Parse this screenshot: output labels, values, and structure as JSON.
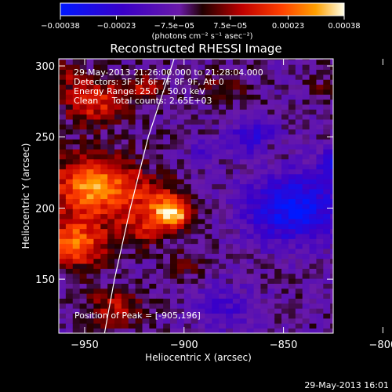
{
  "chart_data": {
    "type": "heatmap",
    "title": "Reconstructed RHESSI Image",
    "xlabel": "Heliocentric X (arcsec)",
    "ylabel": "Heliocentric Y (arcsec)",
    "xlim": [
      -963,
      -825
    ],
    "ylim": [
      112,
      305
    ],
    "xticks": [
      -950,
      -900,
      -850,
      -800
    ],
    "yticks": [
      150,
      200,
      250,
      300
    ],
    "colorbar": {
      "min": -0.00038,
      "max": 0.00038,
      "ticks": [
        -0.00038,
        -0.00023,
        -7.5e-05,
        7.5e-05,
        0.00023,
        0.00038
      ],
      "tick_labels": [
        "−0.00038",
        "−0.00023",
        "−7.5e−05",
        "7.5e−05",
        "0.00023",
        "0.00038"
      ],
      "unit_label": "(photons cm⁻² s⁻¹ asec⁻²)"
    },
    "annotations": [
      "29-May-2013 21:26:00.000 to 21:28:04.000",
      "Detectors: 3F 5F 6F 7F 8F 9F, Att 0",
      "Energy Range: 25.0 - 50.0 keV",
      "Clean     Total counts: 2.65E+03"
    ],
    "peak_label": "Position of Peak = [-905,196]",
    "peak": [
      -905,
      196
    ],
    "limb_curve": [
      [
        -940,
        112
      ],
      [
        -935,
        150
      ],
      [
        -927,
        200
      ],
      [
        -918,
        250
      ],
      [
        -905,
        305
      ]
    ],
    "hot_blobs": [
      {
        "x": -945,
        "y": 215,
        "r": 22,
        "v": 0.00036
      },
      {
        "x": -955,
        "y": 175,
        "r": 16,
        "v": 0.0003
      },
      {
        "x": -905,
        "y": 196,
        "r": 9,
        "v": 0.00034
      },
      {
        "x": -912,
        "y": 205,
        "r": 14,
        "v": 0.00018
      },
      {
        "x": -920,
        "y": 185,
        "r": 12,
        "v": 0.00016
      },
      {
        "x": -945,
        "y": 275,
        "r": 16,
        "v": 0.00022
      },
      {
        "x": -920,
        "y": 285,
        "r": 10,
        "v": 0.00015
      },
      {
        "x": -960,
        "y": 295,
        "r": 8,
        "v": 0.00012
      },
      {
        "x": -880,
        "y": 285,
        "r": 10,
        "v": 0.0001
      },
      {
        "x": -855,
        "y": 240,
        "r": 7,
        "v": 8e-05
      },
      {
        "x": -935,
        "y": 130,
        "r": 14,
        "v": 0.00016
      },
      {
        "x": -900,
        "y": 160,
        "r": 9,
        "v": 0.0001
      },
      {
        "x": -830,
        "y": 285,
        "r": 8,
        "v": 6e-05
      }
    ],
    "cold_blobs": [
      {
        "x": -845,
        "y": 200,
        "r": 24,
        "v": -0.0003
      },
      {
        "x": -820,
        "y": 230,
        "r": 12,
        "v": -0.00026
      },
      {
        "x": -880,
        "y": 130,
        "r": 16,
        "v": -0.00012
      },
      {
        "x": -865,
        "y": 250,
        "r": 12,
        "v": -0.00018
      },
      {
        "x": -810,
        "y": 150,
        "r": 10,
        "v": -0.00016
      },
      {
        "x": -890,
        "y": 240,
        "r": 8,
        "v": -0.0001
      }
    ]
  },
  "footer": {
    "timestamp": "29-May-2013 16:01"
  }
}
